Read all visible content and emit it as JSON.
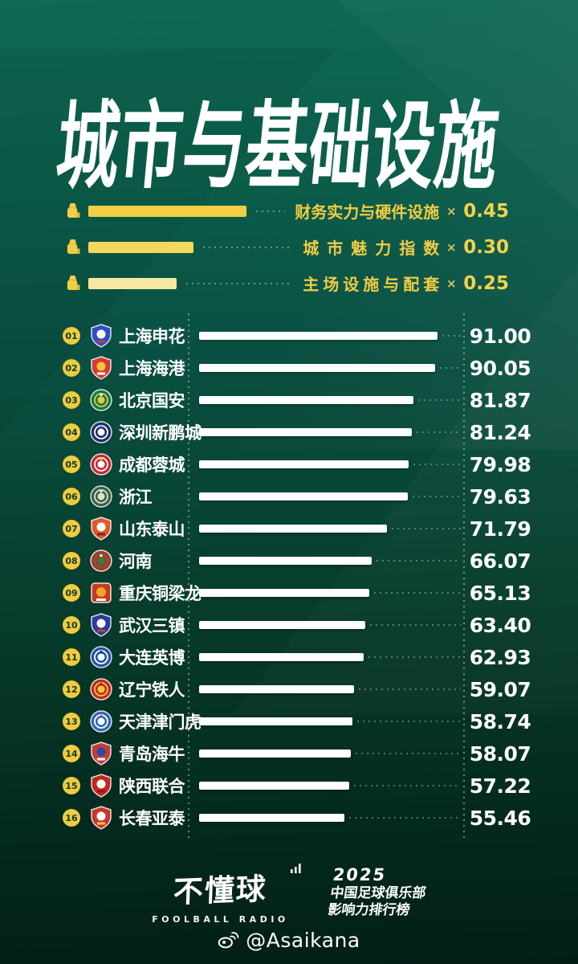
{
  "header": {
    "title": "城市与基础设施"
  },
  "colors": {
    "background_top": "#0E6955",
    "background_bottom": "#021E17",
    "accent_yellow": "#F2CD45",
    "bar_white": "#FFFFFF",
    "rank_badge_bg": "#F0CB3E",
    "rank_badge_text": "#123A2E"
  },
  "icons": {
    "weight": "scale-weight-icon",
    "signal": "broadcast-signal-icon",
    "weibo": "weibo-icon"
  },
  "legend": {
    "items": [
      {
        "label": "财务实力与硬件设施",
        "times": "×",
        "weight_label": "0.45",
        "weight": 0.45,
        "bar_color": "#F3CE44"
      },
      {
        "label": "城市魅力指数",
        "times": "×",
        "weight_label": "0.30",
        "weight": 0.3,
        "bar_color": "#F5D75B"
      },
      {
        "label": "主场设施与配套",
        "times": "×",
        "weight_label": "0.25",
        "weight": 0.25,
        "bar_color": "#F6E7A2"
      }
    ]
  },
  "chart": {
    "rows": [
      {
        "rank": "01",
        "name": "上海申花",
        "value": 91.0,
        "value_label": "91.00",
        "logo": {
          "shape": "shield",
          "colors": [
            "#2a50c4",
            "#ffffff",
            "#d23a2e"
          ]
        }
      },
      {
        "rank": "02",
        "name": "上海海港",
        "value": 90.05,
        "value_label": "90.05",
        "logo": {
          "shape": "shield",
          "colors": [
            "#d93a30",
            "#f2c53f",
            "#ffffff"
          ]
        }
      },
      {
        "rank": "03",
        "name": "北京国安",
        "value": 81.87,
        "value_label": "81.87",
        "logo": {
          "shape": "circle",
          "colors": [
            "#0e7a46",
            "#f2c53f",
            "#ffffff"
          ]
        }
      },
      {
        "rank": "04",
        "name": "深圳新鹏城",
        "value": 81.24,
        "value_label": "81.24",
        "logo": {
          "shape": "circle",
          "colors": [
            "#1d2f6b",
            "#ffffff",
            "#4a6ad0"
          ]
        }
      },
      {
        "rank": "05",
        "name": "成都蓉城",
        "value": 79.98,
        "value_label": "79.98",
        "logo": {
          "shape": "circle",
          "colors": [
            "#c8292f",
            "#ffffff",
            "#e8b83a"
          ]
        }
      },
      {
        "rank": "06",
        "name": "浙江",
        "value": 79.63,
        "value_label": "79.63",
        "logo": {
          "shape": "circle",
          "colors": [
            "#39604a",
            "#d8e6c8",
            "#f2efe0"
          ]
        }
      },
      {
        "rank": "07",
        "name": "山东泰山",
        "value": 71.79,
        "value_label": "71.79",
        "logo": {
          "shape": "shield",
          "colors": [
            "#e05a25",
            "#ffffff",
            "#861f26"
          ]
        }
      },
      {
        "rank": "08",
        "name": "河南",
        "value": 66.07,
        "value_label": "66.07",
        "logo": {
          "shape": "circle",
          "colors": [
            "#b33129",
            "#3a7d3f",
            "#ffffff"
          ]
        }
      },
      {
        "rank": "09",
        "name": "重庆铜梁龙",
        "value": 65.13,
        "value_label": "65.13",
        "logo": {
          "shape": "square",
          "colors": [
            "#c33a25",
            "#f0a526",
            "#ffffff"
          ]
        }
      },
      {
        "rank": "10",
        "name": "武汉三镇",
        "value": 63.4,
        "value_label": "63.40",
        "logo": {
          "shape": "shield",
          "colors": [
            "#2b3d99",
            "#ffffff",
            "#d93a30"
          ]
        }
      },
      {
        "rank": "11",
        "name": "大连英博",
        "value": 62.93,
        "value_label": "62.93",
        "logo": {
          "shape": "circle",
          "colors": [
            "#2253ab",
            "#ffffff",
            "#16316e"
          ]
        }
      },
      {
        "rank": "12",
        "name": "辽宁铁人",
        "value": 59.07,
        "value_label": "59.07",
        "logo": {
          "shape": "circle",
          "colors": [
            "#c22a22",
            "#f2c53f",
            "#8e1d19"
          ]
        }
      },
      {
        "rank": "13",
        "name": "天津津门虎",
        "value": 58.74,
        "value_label": "58.74",
        "logo": {
          "shape": "circle",
          "colors": [
            "#2f68b8",
            "#ffffff",
            "#d93a30"
          ]
        }
      },
      {
        "rank": "14",
        "name": "青岛海牛",
        "value": 58.07,
        "value_label": "58.07",
        "logo": {
          "shape": "shield",
          "colors": [
            "#c43d35",
            "#2b4ba0",
            "#ffffff"
          ]
        }
      },
      {
        "rank": "15",
        "name": "陕西联合",
        "value": 57.22,
        "value_label": "57.22",
        "logo": {
          "shape": "shield",
          "colors": [
            "#c2271f",
            "#ffffff",
            "#871b15"
          ]
        }
      },
      {
        "rank": "16",
        "name": "长春亚泰",
        "value": 55.46,
        "value_label": "55.46",
        "logo": {
          "shape": "shield",
          "colors": [
            "#ca352c",
            "#ffffff",
            "#f2c53f"
          ]
        }
      }
    ]
  },
  "chart_data": {
    "type": "bar",
    "title": "城市与基础设施",
    "orientation": "horizontal",
    "categories": [
      "上海申花",
      "上海海港",
      "北京国安",
      "深圳新鹏城",
      "成都蓉城",
      "浙江",
      "山东泰山",
      "河南",
      "重庆铜梁龙",
      "武汉三镇",
      "大连英博",
      "辽宁铁人",
      "天津津门虎",
      "青岛海牛",
      "陕西联合",
      "长春亚泰"
    ],
    "values": [
      91.0,
      90.05,
      81.87,
      81.24,
      79.98,
      79.63,
      71.79,
      66.07,
      65.13,
      63.4,
      62.93,
      59.07,
      58.74,
      58.07,
      57.22,
      55.46
    ],
    "xlabel": "",
    "ylabel": "",
    "xlim": [
      0,
      100
    ],
    "grid": false,
    "legend_position": "above-chart",
    "weights": [
      {
        "label": "财务实力与硬件设施",
        "weight": 0.45
      },
      {
        "label": "城市魅力指数",
        "weight": 0.3
      },
      {
        "label": "主场设施与配套",
        "weight": 0.25
      }
    ]
  },
  "footer": {
    "brand_name": "不懂球",
    "brand_sub": "FOOLBALL RADIO",
    "edition_year": "2025",
    "edition_line1": "中国足球俱乐部",
    "edition_line2": "影响力排行榜",
    "handle": "@Asaikana"
  }
}
